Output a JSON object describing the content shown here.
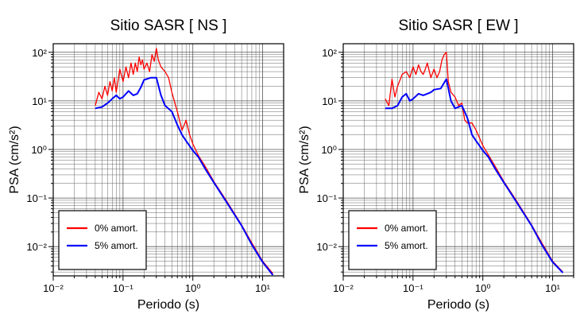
{
  "chart_data": [
    {
      "type": "line",
      "title": "Sitio SASR [ NS ]",
      "xlabel": "Periodo (s)",
      "ylabel": "PSA (cm/s²)",
      "xscale": "log",
      "yscale": "log",
      "xlim": [
        0.01,
        20
      ],
      "ylim": [
        0.0025,
        150
      ],
      "x_tick_labels": [
        "10⁻²",
        "10⁻¹",
        "10⁰",
        "10¹"
      ],
      "y_tick_labels": [
        "10⁻²",
        "10⁻¹",
        "10⁰",
        "10¹",
        "10²"
      ],
      "grid": true,
      "legend_position": "bottom-left",
      "series": [
        {
          "name": "0% amort.",
          "color": "#ff0000",
          "x": [
            0.04,
            0.045,
            0.05,
            0.055,
            0.06,
            0.065,
            0.07,
            0.075,
            0.08,
            0.09,
            0.1,
            0.11,
            0.12,
            0.13,
            0.14,
            0.15,
            0.16,
            0.17,
            0.18,
            0.19,
            0.2,
            0.22,
            0.24,
            0.26,
            0.28,
            0.3,
            0.32,
            0.35,
            0.4,
            0.45,
            0.5,
            0.6,
            0.7,
            0.8,
            0.9,
            1.0,
            1.2,
            1.5,
            2.0,
            3.0,
            5.0,
            7.0,
            10.0,
            14.0
          ],
          "values": [
            8,
            15,
            11,
            20,
            13,
            25,
            16,
            30,
            15,
            45,
            25,
            50,
            30,
            60,
            35,
            60,
            40,
            80,
            55,
            70,
            45,
            60,
            40,
            90,
            65,
            120,
            70,
            50,
            40,
            30,
            15,
            6,
            2.5,
            4,
            2,
            1.3,
            0.75,
            0.45,
            0.22,
            0.09,
            0.028,
            0.012,
            0.005,
            0.0028
          ]
        },
        {
          "name": "5% amort.",
          "color": "#0000ff",
          "x": [
            0.04,
            0.05,
            0.06,
            0.07,
            0.08,
            0.09,
            0.1,
            0.12,
            0.14,
            0.16,
            0.18,
            0.2,
            0.25,
            0.3,
            0.35,
            0.4,
            0.5,
            0.6,
            0.7,
            0.8,
            1.0,
            1.2,
            1.5,
            2.0,
            3.0,
            5.0,
            7.0,
            10.0,
            14.0
          ],
          "values": [
            7,
            7.5,
            9,
            11,
            13,
            11,
            12,
            16,
            13,
            14,
            19,
            27,
            30,
            30,
            13,
            8,
            6,
            3.2,
            2.0,
            1.5,
            0.95,
            0.7,
            0.4,
            0.21,
            0.085,
            0.027,
            0.011,
            0.0048,
            0.0026
          ]
        }
      ]
    },
    {
      "type": "line",
      "title": "Sitio SASR [ EW ]",
      "xlabel": "Periodo (s)",
      "ylabel": "PSA (cm/s²)",
      "xscale": "log",
      "yscale": "log",
      "xlim": [
        0.01,
        20
      ],
      "ylim": [
        0.0025,
        150
      ],
      "x_tick_labels": [
        "10⁻²",
        "10⁻¹",
        "10⁰",
        "10¹"
      ],
      "y_tick_labels": [
        "10⁻²",
        "10⁻¹",
        "10⁰",
        "10¹",
        "10²"
      ],
      "grid": true,
      "legend_position": "bottom-left",
      "series": [
        {
          "name": "0% amort.",
          "color": "#ff0000",
          "x": [
            0.04,
            0.045,
            0.05,
            0.055,
            0.06,
            0.07,
            0.08,
            0.09,
            0.1,
            0.11,
            0.12,
            0.13,
            0.14,
            0.15,
            0.16,
            0.18,
            0.2,
            0.22,
            0.24,
            0.26,
            0.28,
            0.3,
            0.32,
            0.35,
            0.4,
            0.45,
            0.5,
            0.55,
            0.6,
            0.7,
            0.8,
            1.0,
            1.5,
            2.0,
            3.0,
            5.0,
            7.0,
            10.0,
            14.0
          ],
          "values": [
            11,
            8,
            28,
            12,
            20,
            35,
            40,
            30,
            50,
            35,
            55,
            40,
            35,
            45,
            60,
            30,
            45,
            30,
            40,
            70,
            90,
            100,
            25,
            15,
            12,
            8,
            9,
            4,
            3.5,
            3.5,
            2.5,
            1.2,
            0.45,
            0.22,
            0.09,
            0.028,
            0.012,
            0.005,
            0.003
          ]
        },
        {
          "name": "5% amort.",
          "color": "#0000ff",
          "x": [
            0.04,
            0.05,
            0.06,
            0.07,
            0.08,
            0.09,
            0.1,
            0.12,
            0.14,
            0.16,
            0.18,
            0.2,
            0.25,
            0.3,
            0.35,
            0.4,
            0.5,
            0.6,
            0.7,
            0.8,
            1.0,
            1.2,
            1.5,
            2.0,
            3.0,
            5.0,
            7.0,
            10.0,
            14.0
          ],
          "values": [
            7,
            7,
            8,
            12,
            14,
            10,
            11,
            14,
            13,
            14,
            15,
            17,
            18,
            28,
            10,
            7,
            8,
            4.5,
            2.0,
            1.5,
            0.95,
            0.7,
            0.4,
            0.21,
            0.085,
            0.027,
            0.011,
            0.0048,
            0.0029
          ]
        }
      ]
    }
  ]
}
